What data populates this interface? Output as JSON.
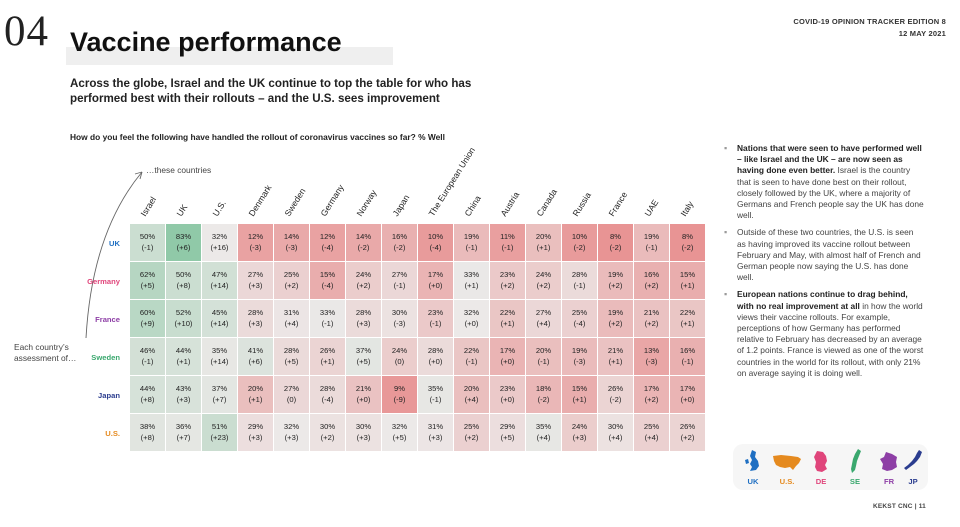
{
  "header": {
    "section_number": "04",
    "title": "Vaccine performance",
    "edition_line1": "COVID-19 OPINION TRACKER EDITION  8",
    "edition_line2": "12 MAY 2021"
  },
  "subtitle": "Across the globe, Israel and the UK continue to top the table for who has performed best with their rollouts – and the U.S. sees improvement",
  "question": "How do you feel the following have handled the rollout of coronavirus vaccines so far? % Well",
  "axis_labels": {
    "these_countries": "…these countries",
    "each_country": "Each country’s assessment of…"
  },
  "columns": [
    "Israel",
    "UK",
    "U.S.",
    "Denmark",
    "Sweden",
    "Germany",
    "Norway",
    "Japan",
    "The European Union",
    "China",
    "Austria",
    "Canada",
    "Russia",
    "France",
    "UAE",
    "Italy"
  ],
  "rows": [
    {
      "label": "UK",
      "color": "#1f6fc2",
      "cells": [
        [
          "50%",
          "(-1)"
        ],
        [
          "83%",
          "(+6)"
        ],
        [
          "32%",
          "(+16)"
        ],
        [
          "12%",
          "(-3)"
        ],
        [
          "14%",
          "(-3)"
        ],
        [
          "12%",
          "(-4)"
        ],
        [
          "14%",
          "(-2)"
        ],
        [
          "16%",
          "(-2)"
        ],
        [
          "10%",
          "(-4)"
        ],
        [
          "19%",
          "(-1)"
        ],
        [
          "11%",
          "(-1)"
        ],
        [
          "20%",
          "(+1)"
        ],
        [
          "10%",
          "(-2)"
        ],
        [
          "8%",
          "(-2)"
        ],
        [
          "19%",
          "(-1)"
        ],
        [
          "8%",
          "(-2)"
        ]
      ]
    },
    {
      "label": "Germany",
      "color": "#e0457b",
      "cells": [
        [
          "62%",
          "(+5)"
        ],
        [
          "50%",
          "(+8)"
        ],
        [
          "47%",
          "(+14)"
        ],
        [
          "27%",
          "(+3)"
        ],
        [
          "25%",
          "(+2)"
        ],
        [
          "15%",
          "(-4)"
        ],
        [
          "24%",
          "(+2)"
        ],
        [
          "27%",
          "(-1)"
        ],
        [
          "17%",
          "(+0)"
        ],
        [
          "33%",
          "(+1)"
        ],
        [
          "23%",
          "(+2)"
        ],
        [
          "24%",
          "(+2)"
        ],
        [
          "28%",
          "(-1)"
        ],
        [
          "19%",
          "(+2)"
        ],
        [
          "16%",
          "(+2)"
        ],
        [
          "15%",
          "(+1)"
        ]
      ]
    },
    {
      "label": "France",
      "color": "#8e3fa6",
      "cells": [
        [
          "60%",
          "(+9)"
        ],
        [
          "52%",
          "(+10)"
        ],
        [
          "45%",
          "(+14)"
        ],
        [
          "28%",
          "(+3)"
        ],
        [
          "31%",
          "(+4)"
        ],
        [
          "33%",
          "(-1)"
        ],
        [
          "28%",
          "(+3)"
        ],
        [
          "30%",
          "(-3)"
        ],
        [
          "23%",
          "(-1)"
        ],
        [
          "32%",
          "(+0)"
        ],
        [
          "22%",
          "(+1)"
        ],
        [
          "27%",
          "(+4)"
        ],
        [
          "25%",
          "(-4)"
        ],
        [
          "19%",
          "(+2)"
        ],
        [
          "21%",
          "(+2)"
        ],
        [
          "22%",
          "(+1)"
        ]
      ]
    },
    {
      "label": "Sweden",
      "color": "#3aa86e",
      "cells": [
        [
          "46%",
          "(-1)"
        ],
        [
          "44%",
          "(+1)"
        ],
        [
          "35%",
          "(+14)"
        ],
        [
          "41%",
          "(+6)"
        ],
        [
          "28%",
          "(+5)"
        ],
        [
          "26%",
          "(+1)"
        ],
        [
          "37%",
          "(+5)"
        ],
        [
          "24%",
          "(0)"
        ],
        [
          "28%",
          "(+0)"
        ],
        [
          "22%",
          "(-1)"
        ],
        [
          "17%",
          "(+0)"
        ],
        [
          "20%",
          "(-1)"
        ],
        [
          "19%",
          "(-3)"
        ],
        [
          "21%",
          "(+1)"
        ],
        [
          "13%",
          "(-3)"
        ],
        [
          "16%",
          "(-1)"
        ]
      ]
    },
    {
      "label": "Japan",
      "color": "#2b3d8f",
      "cells": [
        [
          "44%",
          "(+8)"
        ],
        [
          "43%",
          "(+3)"
        ],
        [
          "37%",
          "(+7)"
        ],
        [
          "20%",
          "(+1)"
        ],
        [
          "27%",
          "(0)"
        ],
        [
          "28%",
          "(-4)"
        ],
        [
          "21%",
          "(+0)"
        ],
        [
          "9%",
          "(-9)"
        ],
        [
          "35%",
          "(-1)"
        ],
        [
          "20%",
          "(+4)"
        ],
        [
          "23%",
          "(+0)"
        ],
        [
          "18%",
          "(-2)"
        ],
        [
          "15%",
          "(+1)"
        ],
        [
          "26%",
          "(-2)"
        ],
        [
          "17%",
          "(+2)"
        ],
        [
          "17%",
          "(+0)"
        ]
      ]
    },
    {
      "label": "U.S.",
      "color": "#e58a1f",
      "cells": [
        [
          "38%",
          "(+8)"
        ],
        [
          "36%",
          "(+7)"
        ],
        [
          "51%",
          "(+23)"
        ],
        [
          "29%",
          "(+3)"
        ],
        [
          "32%",
          "(+3)"
        ],
        [
          "30%",
          "(+2)"
        ],
        [
          "30%",
          "(+3)"
        ],
        [
          "32%",
          "(+5)"
        ],
        [
          "31%",
          "(+3)"
        ],
        [
          "25%",
          "(+2)"
        ],
        [
          "29%",
          "(+5)"
        ],
        [
          "35%",
          "(+4)"
        ],
        [
          "24%",
          "(+3)"
        ],
        [
          "30%",
          "(+4)"
        ],
        [
          "25%",
          "(+4)"
        ],
        [
          "26%",
          "(+2)"
        ]
      ]
    }
  ],
  "bullets": [
    {
      "bold": "Nations that were seen to have performed well – like Israel and the UK – are now seen as having done even better.",
      "text": " Israel is the country that is seen to have done best on their rollout, closely followed by the UK, where a majority of Germans and French people say the UK has done well."
    },
    {
      "bold": "",
      "text": "Outside of these two countries, the U.S. is seen as having improved its vaccine rollout between February and May, with almost half of French and German people now saying the U.S. has done well."
    },
    {
      "bold": "European nations continue to drag behind, with no real improvement at all",
      "text": " in how the world views their vaccine rollouts. For example, perceptions of how Germany has performed relative to February has decreased by an average of 1.2 points. France is viewed as one of the worst countries in the world for its rollout, with only 21% on average saying it is doing well."
    }
  ],
  "legend": [
    {
      "label": "UK",
      "color": "#1f6fc2",
      "icon": "uk-map-icon"
    },
    {
      "label": "U.S.",
      "color": "#e58a1f",
      "icon": "us-map-icon"
    },
    {
      "label": "DE",
      "color": "#e0457b",
      "icon": "germany-map-icon"
    },
    {
      "label": "SE",
      "color": "#3aa86e",
      "icon": "sweden-map-icon"
    },
    {
      "label": "FR",
      "color": "#8e3fa6",
      "icon": "france-map-icon"
    },
    {
      "label": "JP",
      "color": "#2b3d8f",
      "icon": "japan-map-icon"
    }
  ],
  "footer": "KEKST CNC  |  11"
}
